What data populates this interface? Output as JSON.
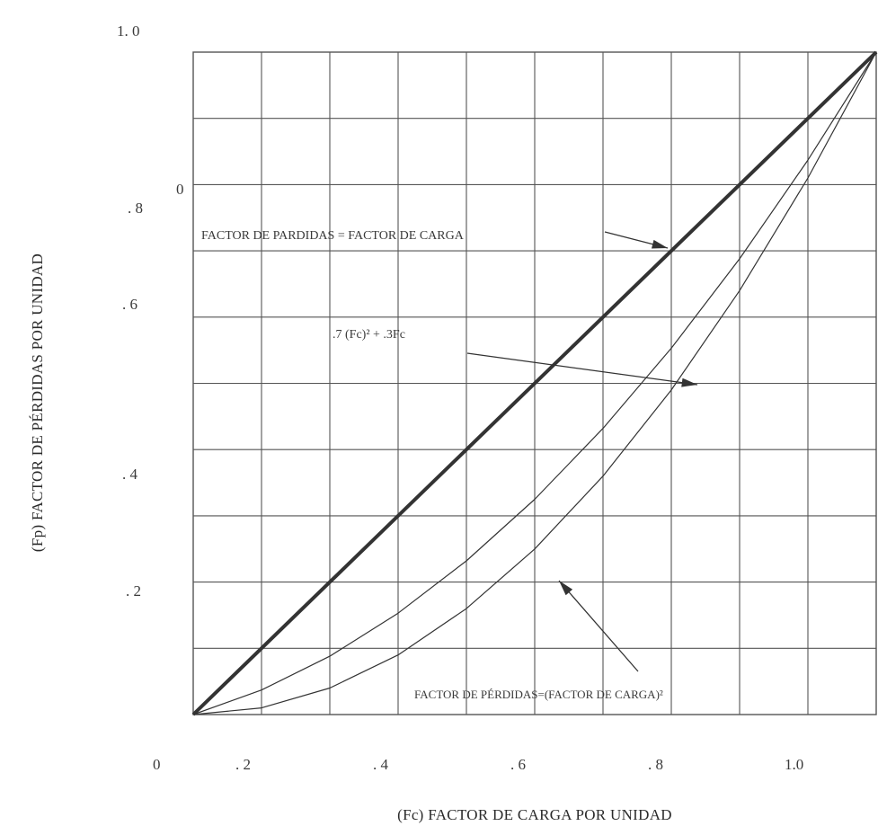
{
  "chart_data": {
    "type": "line",
    "xlabel": "(Fc)  FACTOR DE CARGA POR UNIDAD",
    "ylabel": "(Fp) FACTOR DE PÉRDIDAS POR UNIDAD",
    "xlim": [
      0,
      1.0
    ],
    "ylim": [
      0,
      1.0
    ],
    "grid": true,
    "x_tick_labels": [
      "0",
      ". 2",
      ". 4",
      ". 6",
      ". 8",
      "1.0"
    ],
    "y_tick_labels": [
      "1. 0",
      "0",
      ". 8",
      ". 6",
      ". 4",
      ". 2"
    ],
    "series": [
      {
        "x": [
          0,
          0.2,
          0.4,
          0.6,
          0.8,
          1.0
        ],
        "y": [
          0,
          0.2,
          0.4,
          0.6,
          0.8,
          1.0
        ]
      },
      {
        "x": [
          0,
          0.1,
          0.2,
          0.3,
          0.4,
          0.5,
          0.6,
          0.7,
          0.8,
          0.9,
          1.0
        ],
        "y": [
          0,
          0.037,
          0.088,
          0.153,
          0.232,
          0.325,
          0.432,
          0.553,
          0.688,
          0.837,
          1.0
        ]
      },
      {
        "x": [
          0,
          0.1,
          0.2,
          0.3,
          0.4,
          0.5,
          0.6,
          0.7,
          0.8,
          0.9,
          1.0
        ],
        "y": [
          0,
          0.01,
          0.04,
          0.09,
          0.16,
          0.25,
          0.36,
          0.49,
          0.64,
          0.81,
          1.0
        ]
      }
    ],
    "annotations": [
      "FACTOR DE PARDIDAS = FACTOR DE CARGA",
      ".7 (Fc)² + .3Fc",
      "FACTOR DE PÉRDIDAS=(FACTOR  DE CARGA)²"
    ]
  }
}
